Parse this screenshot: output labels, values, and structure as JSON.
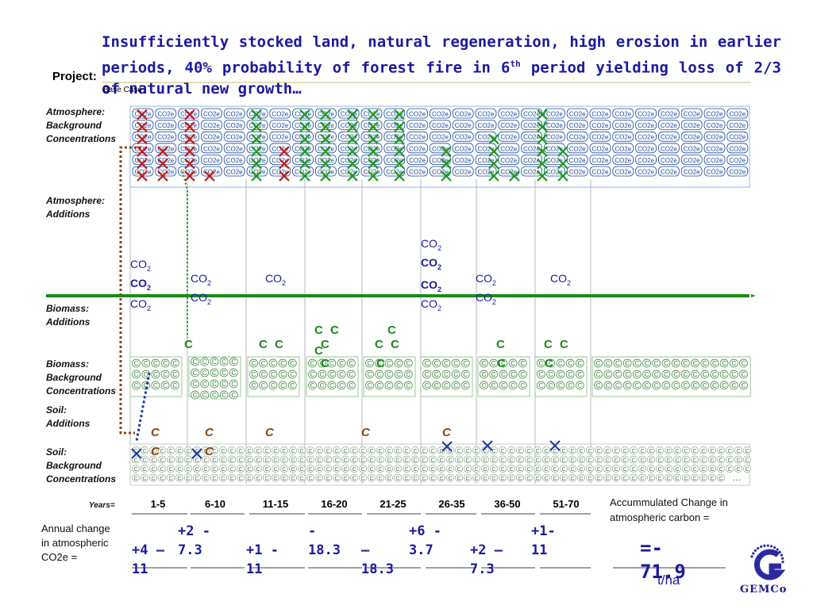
{
  "title": {
    "main": "Insufficiently stocked land, natural regeneration, high erosion in earlier periods, 40% probability of forest fire in 6",
    "sup": "th",
    "rest": " period yielding loss of 2/3 of natural new growth…"
  },
  "project_label": "Project:",
  "base_case": "Base Case",
  "row_labels": {
    "atm_bg": [
      "Atmosphere:",
      "Background",
      "Concentrations"
    ],
    "atm_add": [
      "Atmosphere:",
      "Additions"
    ],
    "bio_add": [
      "Biomass:",
      "Additions"
    ],
    "bio_bg": [
      "Biomass:",
      "Background",
      "Concentrations"
    ],
    "soil_add": [
      "Soil:",
      "Additions"
    ],
    "soil_bg": [
      "Soil:",
      "Background",
      "Concentrations"
    ]
  },
  "tokens": {
    "co2e": "CO2e",
    "co2_base": "CO",
    "co2_sub": "2",
    "c": "C",
    "x": "X",
    "soil_ellipsis": "…"
  },
  "years_label": "Years=",
  "periods": [
    "1-5",
    "6-10",
    "11-15",
    "16-20",
    "21-25",
    "26-35",
    "36-50",
    "51-70"
  ],
  "annual_label": [
    "Annual change",
    "in atmospheric",
    "CO2e ="
  ],
  "annual_values": [
    {
      "line1": "",
      "line2": "+4 –",
      "line3": "11"
    },
    {
      "line1": "+2 -",
      "line2": "7.3",
      "line3": ""
    },
    {
      "line1": "",
      "line2": "+1 -",
      "line3": "11"
    },
    {
      "line1": "-",
      "line2": "18.3",
      "line3": ""
    },
    {
      "line1": "",
      "line2": "–",
      "line3": "18.3"
    },
    {
      "line1": "+6 -",
      "line2": "3.7",
      "line3": ""
    },
    {
      "line1": "",
      "line2": "+2 –",
      "line3": "7.3"
    },
    {
      "line1": "+1-",
      "line2": "11",
      "line3": ""
    }
  ],
  "accum_label": [
    "Accummulated Change in",
    "atmospheric carbon ="
  ],
  "result": {
    "line1": "=-",
    "line2": "71.9"
  },
  "per_ha": "t/ha",
  "logo_text": "GEMCo",
  "colors": {
    "title": "#1a1aa0",
    "co2e_token": "#1a4aa0",
    "x_red": "#c01818",
    "x_green": "#1a9a1a",
    "green_line": "#1a8a1a",
    "c_token": "#2a7a2a",
    "brown": "#8b4513",
    "blue_dotted": "#1a3aa0"
  }
}
